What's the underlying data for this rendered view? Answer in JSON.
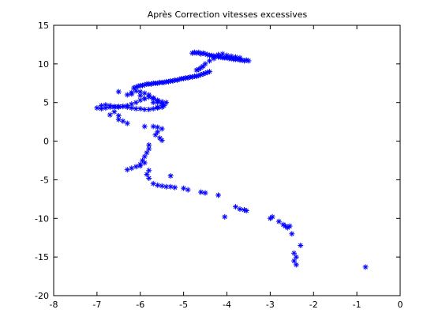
{
  "chart_data": {
    "type": "scatter",
    "title": "Après Correction vitesses excessives",
    "xlabel": "",
    "ylabel": "",
    "xlim": [
      -8,
      0
    ],
    "ylim": [
      -20,
      15
    ],
    "xticks": [
      -8,
      -7,
      -6,
      -5,
      -4,
      -3,
      -2,
      -1,
      0
    ],
    "yticks": [
      -20,
      -15,
      -10,
      -5,
      0,
      5,
      10,
      15
    ],
    "grid": false,
    "marker": "asterisk",
    "color": "#0000ff",
    "series": [
      {
        "x": [
          -4.8,
          -4.75,
          -4.7,
          -4.65,
          -4.6,
          -4.55,
          -4.5,
          -4.45,
          -4.4,
          -4.35,
          -4.3,
          -4.25,
          -4.2,
          -4.15,
          -4.1,
          -4.05,
          -4.0,
          -3.95,
          -3.9,
          -3.85,
          -3.8,
          -3.75,
          -3.7,
          -3.65,
          -3.6,
          -3.55,
          -3.5,
          -4.2,
          -4.1,
          -4.0,
          -3.9,
          -3.8,
          -3.7,
          -4.3,
          -4.4,
          -4.5,
          -4.55,
          -4.6,
          -4.65,
          -4.7,
          -4.4,
          -4.45,
          -4.5,
          -4.55,
          -4.6,
          -4.65,
          -4.7,
          -4.75,
          -4.8,
          -4.85,
          -4.9,
          -4.95,
          -5.0,
          -5.05,
          -5.1,
          -5.15,
          -5.2,
          -5.25,
          -5.3,
          -5.35,
          -5.4,
          -5.45,
          -5.5,
          -5.55,
          -5.6,
          -5.65,
          -5.7,
          -5.75,
          -5.8,
          -5.85,
          -5.9,
          -5.95,
          -6.0,
          -6.05,
          -6.1,
          -6.15,
          -6.2,
          -6.1,
          -6.0,
          -5.9,
          -5.8,
          -5.7,
          -5.6,
          -5.5,
          -5.4,
          -5.5,
          -5.6,
          -5.7,
          -5.8,
          -5.9,
          -6.0,
          -6.1,
          -6.2,
          -6.3,
          -6.4,
          -6.5,
          -6.6,
          -6.7,
          -6.8,
          -6.9,
          -7.0,
          -6.9,
          -6.8,
          -6.7,
          -6.6,
          -6.5,
          -6.4,
          -6.3,
          -6.2,
          -6.1,
          -6.0,
          -5.9,
          -5.8,
          -5.7,
          -5.6,
          -5.5,
          -5.45,
          -5.5,
          -5.6,
          -6.5,
          -6.3,
          -6.2,
          -6.0,
          -5.9,
          -5.7,
          -5.6,
          -6.6,
          -6.7,
          -6.5,
          -6.4,
          -6.5,
          -6.3,
          -5.9,
          -5.7,
          -5.6,
          -5.5,
          -5.6,
          -5.65,
          -5.55,
          -5.5,
          -5.8,
          -5.8,
          -5.85,
          -5.9,
          -5.95,
          -6.0,
          -6.1,
          -6.2,
          -6.3,
          -6.0,
          -5.9,
          -5.8,
          -5.85,
          -5.8,
          -5.7,
          -5.6,
          -5.5,
          -5.4,
          -5.3,
          -5.2,
          -5.0,
          -4.9,
          -4.6,
          -4.5,
          -4.2,
          -4.05,
          -3.8,
          -3.7,
          -3.6,
          -3.55,
          -3.0,
          -2.95,
          -2.8,
          -2.7,
          -2.65,
          -2.6,
          -2.55,
          -2.5,
          -2.45,
          -2.4,
          -2.3,
          -2.45,
          -2.4,
          -0.8,
          -5.3
        ],
        "y": [
          11.4,
          11.5,
          11.4,
          11.5,
          11.3,
          11.4,
          11.3,
          11.2,
          11.1,
          11.1,
          11.0,
          11.0,
          10.9,
          10.9,
          10.8,
          10.8,
          10.8,
          10.7,
          10.7,
          10.6,
          10.6,
          10.6,
          10.5,
          10.5,
          10.4,
          10.5,
          10.4,
          11.2,
          11.3,
          11.1,
          11.0,
          10.9,
          10.8,
          10.7,
          10.4,
          10.0,
          9.7,
          9.5,
          9.3,
          9.2,
          9.0,
          8.9,
          8.8,
          8.7,
          8.6,
          8.5,
          8.4,
          8.4,
          8.3,
          8.3,
          8.2,
          8.2,
          8.1,
          8.1,
          8.0,
          7.9,
          7.9,
          7.8,
          7.8,
          7.7,
          7.7,
          7.6,
          7.6,
          7.6,
          7.5,
          7.5,
          7.5,
          7.4,
          7.4,
          7.4,
          7.3,
          7.2,
          7.2,
          7.1,
          7.0,
          6.9,
          6.3,
          6.5,
          6.4,
          6.2,
          6.0,
          5.6,
          5.2,
          4.8,
          5.0,
          5.1,
          5.3,
          5.5,
          5.7,
          5.5,
          5.3,
          5.0,
          4.8,
          4.6,
          4.5,
          4.5,
          4.4,
          4.4,
          4.3,
          4.2,
          4.3,
          4.6,
          4.7,
          4.6,
          4.5,
          4.4,
          4.5,
          4.4,
          4.3,
          4.2,
          4.2,
          4.1,
          4.1,
          4.2,
          4.3,
          4.4,
          4.6,
          4.8,
          5.0,
          6.4,
          6.0,
          6.1,
          5.9,
          5.5,
          5.0,
          4.4,
          3.8,
          3.4,
          3.3,
          2.6,
          2.8,
          2.3,
          1.9,
          1.9,
          1.8,
          1.6,
          1.2,
          0.8,
          0.4,
          0.1,
          -0.5,
          -1.0,
          -1.5,
          -2.0,
          -2.5,
          -3.0,
          -3.3,
          -3.5,
          -3.7,
          -3.2,
          -2.8,
          -3.8,
          -4.3,
          -4.8,
          -5.5,
          -5.7,
          -5.8,
          -5.9,
          -5.9,
          -6.0,
          -6.1,
          -6.3,
          -6.6,
          -6.7,
          -7.0,
          -9.8,
          -8.5,
          -8.8,
          -8.9,
          -9.0,
          -10.0,
          -9.8,
          -10.4,
          -10.8,
          -11.0,
          -11.2,
          -11.0,
          -12.0,
          -14.5,
          -15.0,
          -13.5,
          -15.5,
          -16.0,
          -16.3,
          -4.5
        ]
      }
    ]
  }
}
